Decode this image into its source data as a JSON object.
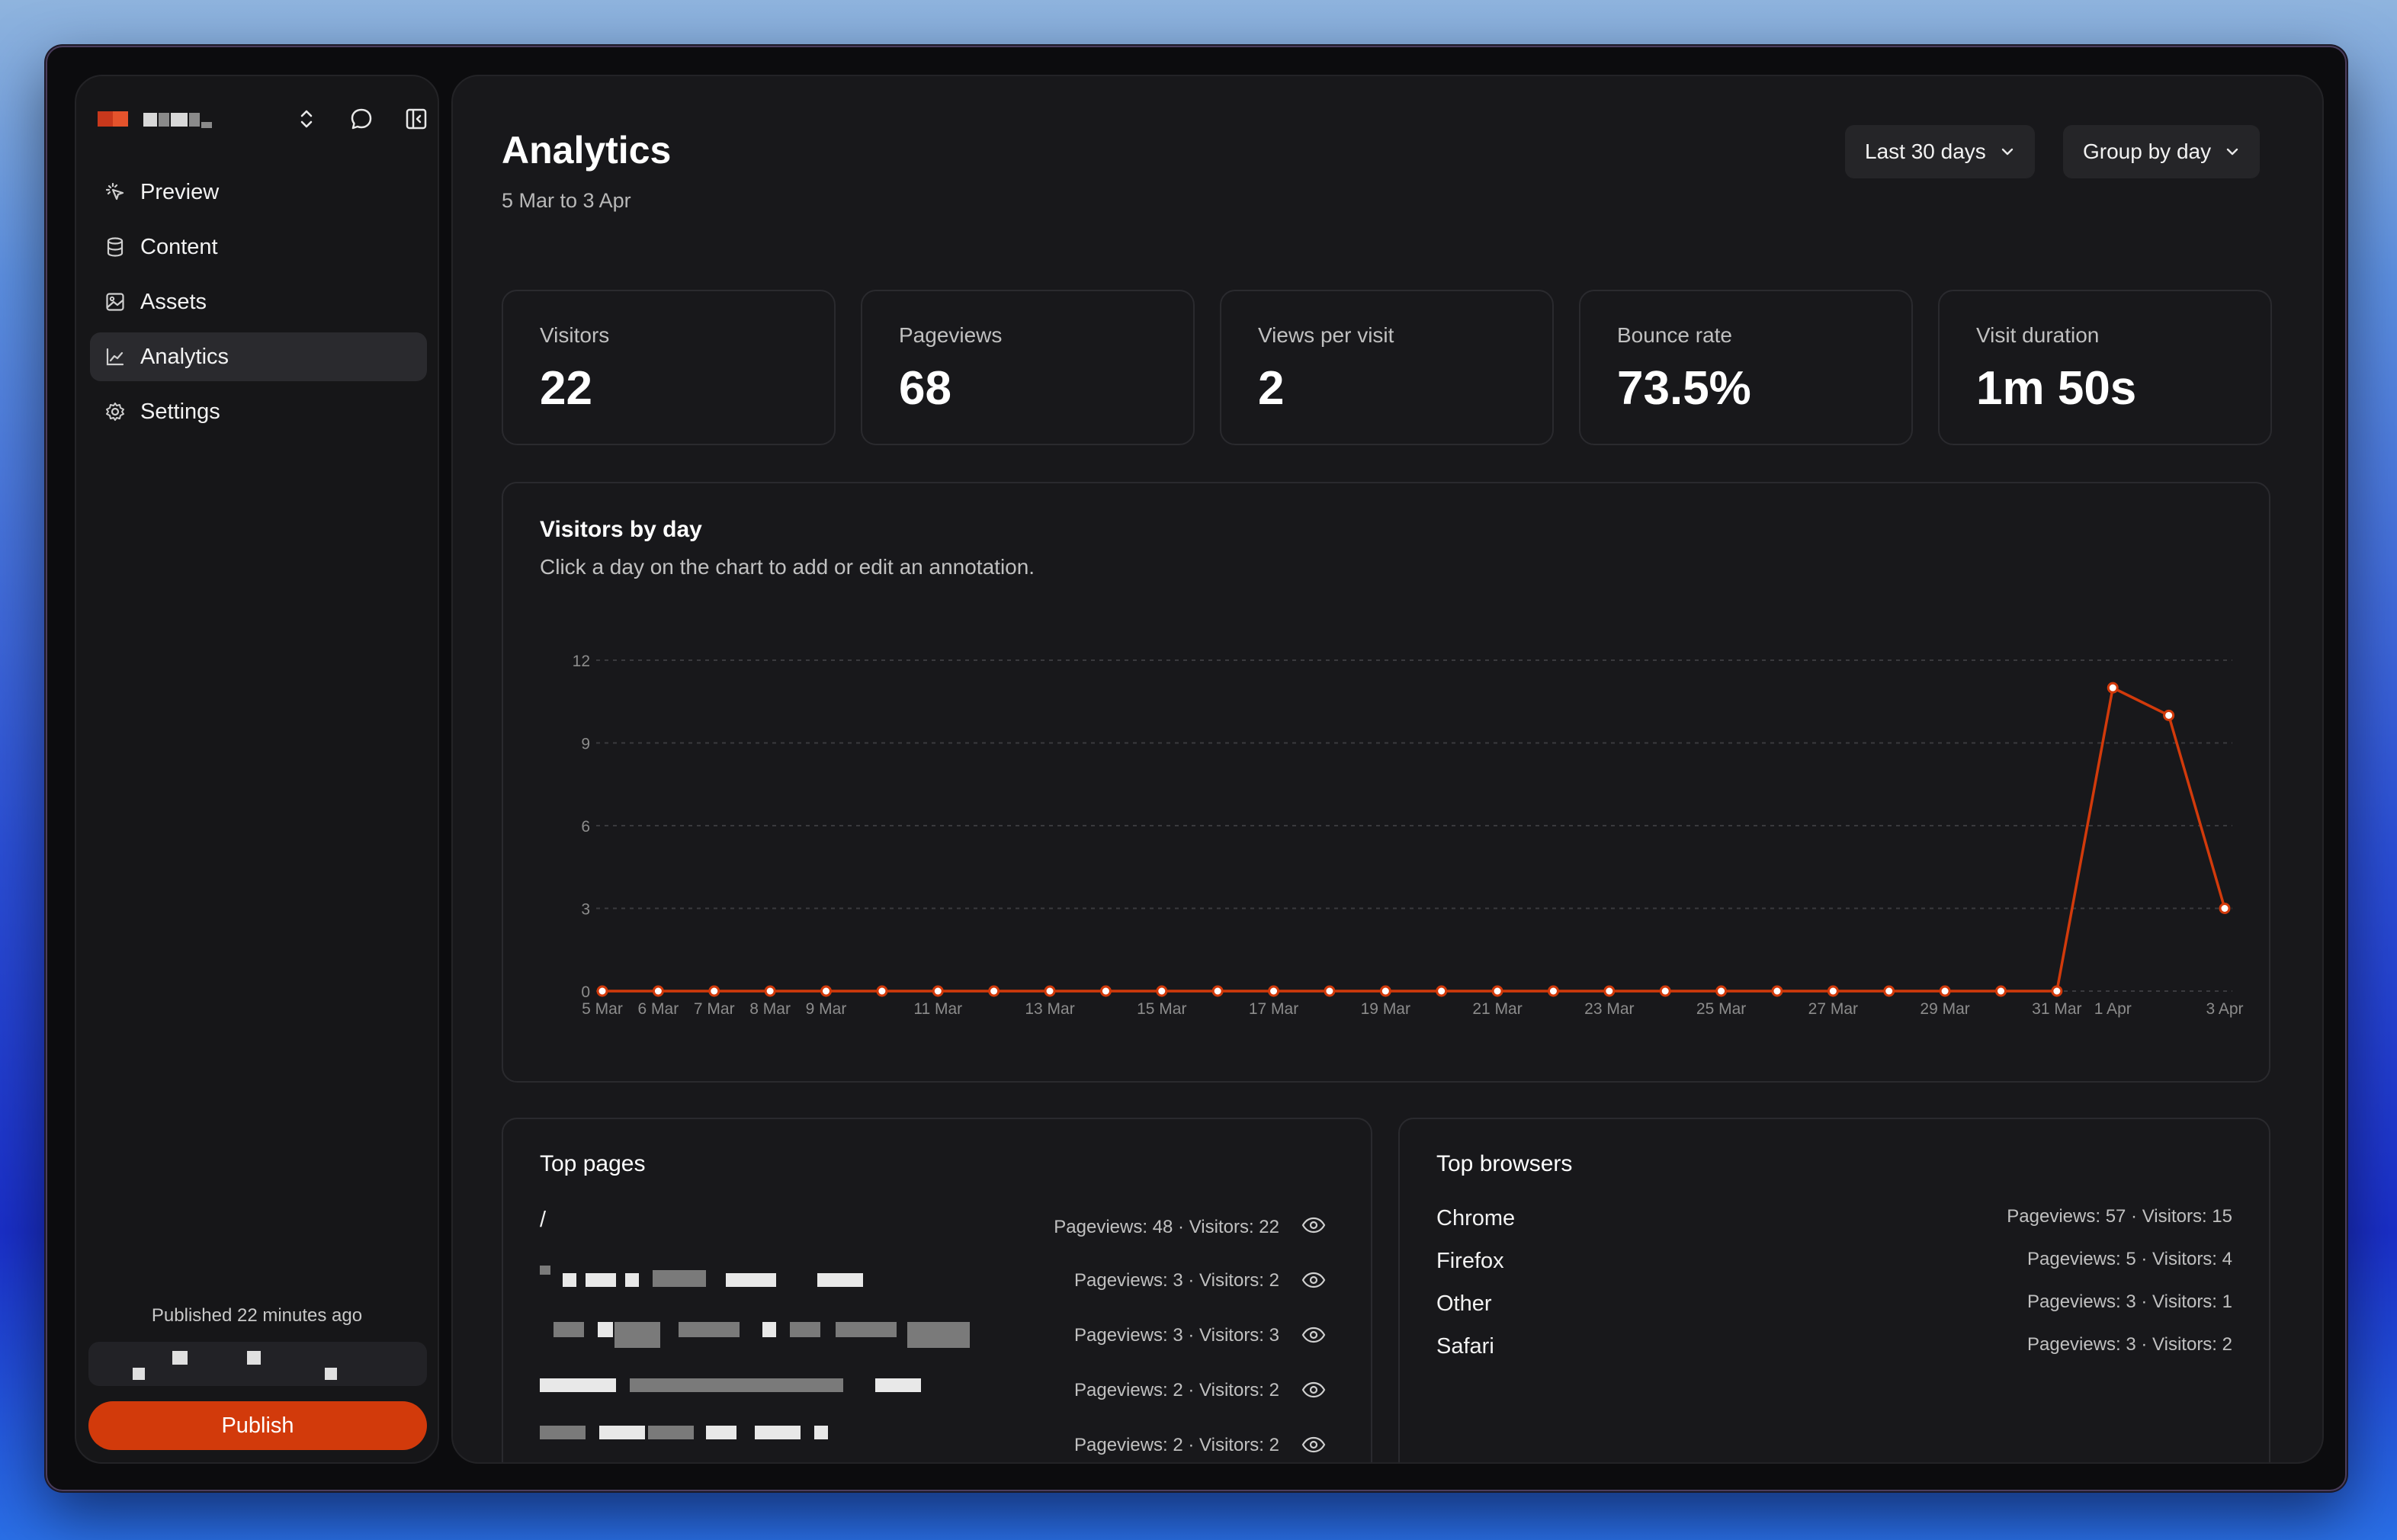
{
  "app": {
    "nav": [
      {
        "label": "Preview",
        "icon": "cursor-sparkle-icon"
      },
      {
        "label": "Content",
        "icon": "database-icon"
      },
      {
        "label": "Assets",
        "icon": "image-icon"
      },
      {
        "label": "Analytics",
        "icon": "line-chart-icon",
        "active": true
      },
      {
        "label": "Settings",
        "icon": "gear-icon"
      }
    ],
    "published_text": "Published 22 minutes ago",
    "publish_label": "Publish",
    "accent": "#d23a0b"
  },
  "header": {
    "title": "Analytics",
    "date_range": "5 Mar to 3 Apr",
    "range_select": "Last 30 days",
    "group_select": "Group by day"
  },
  "stats": [
    {
      "label": "Visitors",
      "value": "22"
    },
    {
      "label": "Pageviews",
      "value": "68"
    },
    {
      "label": "Views per visit",
      "value": "2"
    },
    {
      "label": "Bounce rate",
      "value": "73.5%"
    },
    {
      "label": "Visit duration",
      "value": "1m 50s"
    }
  ],
  "visitors_card": {
    "title": "Visitors by day",
    "subtitle": "Click a day on the chart to add or edit an annotation."
  },
  "chart_data": {
    "type": "line",
    "title": "Visitors by day",
    "x": [
      "5 Mar",
      "6 Mar",
      "7 Mar",
      "8 Mar",
      "9 Mar",
      "10 Mar",
      "11 Mar",
      "12 Mar",
      "13 Mar",
      "14 Mar",
      "15 Mar",
      "16 Mar",
      "17 Mar",
      "18 Mar",
      "19 Mar",
      "20 Mar",
      "21 Mar",
      "22 Mar",
      "23 Mar",
      "24 Mar",
      "25 Mar",
      "26 Mar",
      "27 Mar",
      "28 Mar",
      "29 Mar",
      "30 Mar",
      "31 Mar",
      "1 Apr",
      "2 Apr",
      "3 Apr"
    ],
    "tick_labels": [
      "5 Mar",
      "6 Mar",
      "7 Mar",
      "8 Mar",
      "9 Mar",
      "11 Mar",
      "13 Mar",
      "15 Mar",
      "17 Mar",
      "19 Mar",
      "21 Mar",
      "23 Mar",
      "25 Mar",
      "27 Mar",
      "29 Mar",
      "31 Mar",
      "1 Apr",
      "3 Apr"
    ],
    "series": [
      {
        "values": [
          0,
          0,
          0,
          0,
          0,
          0,
          0,
          0,
          0,
          0,
          0,
          0,
          0,
          0,
          0,
          0,
          0,
          0,
          0,
          0,
          0,
          0,
          0,
          0,
          0,
          0,
          0,
          11,
          10,
          3
        ],
        "color": "#d23a0b"
      }
    ],
    "ylim": [
      0,
      12
    ],
    "yticks": [
      0,
      3,
      6,
      9,
      12
    ],
    "grid": true
  },
  "top_pages": {
    "title": "Top pages",
    "rows": [
      {
        "label": "/",
        "stats": "Pageviews: 48 · Visitors: 22"
      },
      {
        "label": "",
        "stats": "Pageviews: 3 · Visitors: 2"
      },
      {
        "label": "",
        "stats": "Pageviews: 3 · Visitors: 3"
      },
      {
        "label": "",
        "stats": "Pageviews: 2 · Visitors: 2"
      },
      {
        "label": "",
        "stats": "Pageviews: 2 · Visitors: 2"
      }
    ]
  },
  "top_browsers": {
    "title": "Top browsers",
    "rows": [
      {
        "label": "Chrome",
        "stats": "Pageviews: 57 · Visitors: 15"
      },
      {
        "label": "Firefox",
        "stats": "Pageviews: 5 · Visitors: 4"
      },
      {
        "label": "Other",
        "stats": "Pageviews: 3 · Visitors: 1"
      },
      {
        "label": "Safari",
        "stats": "Pageviews: 3 · Visitors: 2"
      }
    ]
  }
}
